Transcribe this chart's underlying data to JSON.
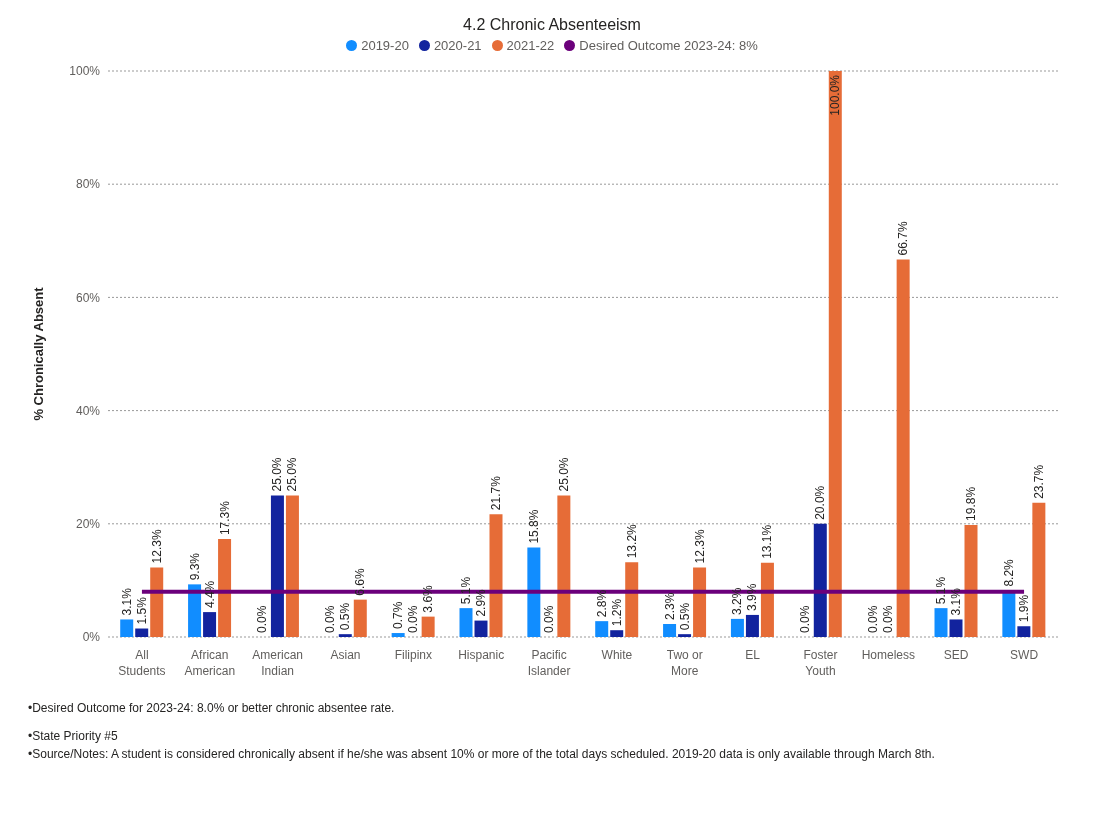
{
  "chart_data": {
    "type": "bar",
    "title": "4.2 Chronic Absenteeism",
    "ylabel": "% Chronically Absent",
    "categories": [
      "All Students",
      "African American",
      "American Indian",
      "Asian",
      "Filipinx",
      "Hispanic",
      "Pacific Islander",
      "White",
      "Two or More",
      "EL",
      "Foster Youth",
      "Homeless",
      "SED",
      "SWD"
    ],
    "series": [
      {
        "name": "2019-20",
        "color": "#118dff",
        "values": [
          3.1,
          9.3,
          0.0,
          0.0,
          0.7,
          5.1,
          15.8,
          2.8,
          2.3,
          3.2,
          0.0,
          0.0,
          5.1,
          8.2
        ],
        "value_labels": [
          "3.1%",
          "9.3%",
          "0.0%",
          "0.0%",
          "0.7%",
          "5.1%",
          "15.8%",
          "2.8%",
          "2.3%",
          "3.2%",
          "0.0%",
          "0.0%",
          "5.1%",
          "8.2%"
        ]
      },
      {
        "name": "2020-21",
        "color": "#12239e",
        "values": [
          1.5,
          4.4,
          25.0,
          0.5,
          0.0,
          2.9,
          0.0,
          1.2,
          0.5,
          3.9,
          20.0,
          0.0,
          3.1,
          1.9
        ],
        "value_labels": [
          "1.5%",
          "4.4%",
          "25.0%",
          "0.5%",
          "0.0%",
          "2.9%",
          "0.0%",
          "1.2%",
          "0.5%",
          "3.9%",
          "20.0%",
          "0.0%",
          "3.1%",
          "1.9%"
        ]
      },
      {
        "name": "2021-22",
        "color": "#e66c37",
        "values": [
          12.3,
          17.3,
          25.0,
          6.6,
          3.6,
          21.7,
          25.0,
          13.2,
          12.3,
          13.1,
          100.0,
          66.7,
          19.8,
          23.7
        ],
        "value_labels": [
          "12.3%",
          "17.3%",
          "25.0%",
          "6.6%",
          "3.6%",
          "21.7%",
          "25.0%",
          "13.2%",
          "12.3%",
          "13.1%",
          "100.0%",
          "66.7%",
          "19.8%",
          "23.7%"
        ]
      },
      {
        "name": "Desired Outcome 2023-24: 8%",
        "type": "line",
        "color": "#6b007b",
        "values": [
          8,
          8,
          8,
          8,
          8,
          8,
          8,
          8,
          8,
          8,
          8,
          8,
          8,
          8
        ]
      }
    ],
    "ylim": [
      0,
      100
    ],
    "yticks": [
      {
        "value": 0,
        "label": "0%"
      },
      {
        "value": 20,
        "label": "20%"
      },
      {
        "value": 40,
        "label": "40%"
      },
      {
        "value": 60,
        "label": "60%"
      },
      {
        "value": 80,
        "label": "80%"
      },
      {
        "value": 100,
        "label": "100%"
      }
    ],
    "grid": "y",
    "legend": "top",
    "marker": "none",
    "annotations": [
      "•Desired Outcome for 2023-24: 8.0% or better chronic absentee rate.",
      "•State Priority #5",
      "•Source/Notes: A student is considered chronically absent if he/she was absent 10% or more of the total days scheduled. 2019-20 data is only available through March 8th."
    ]
  }
}
